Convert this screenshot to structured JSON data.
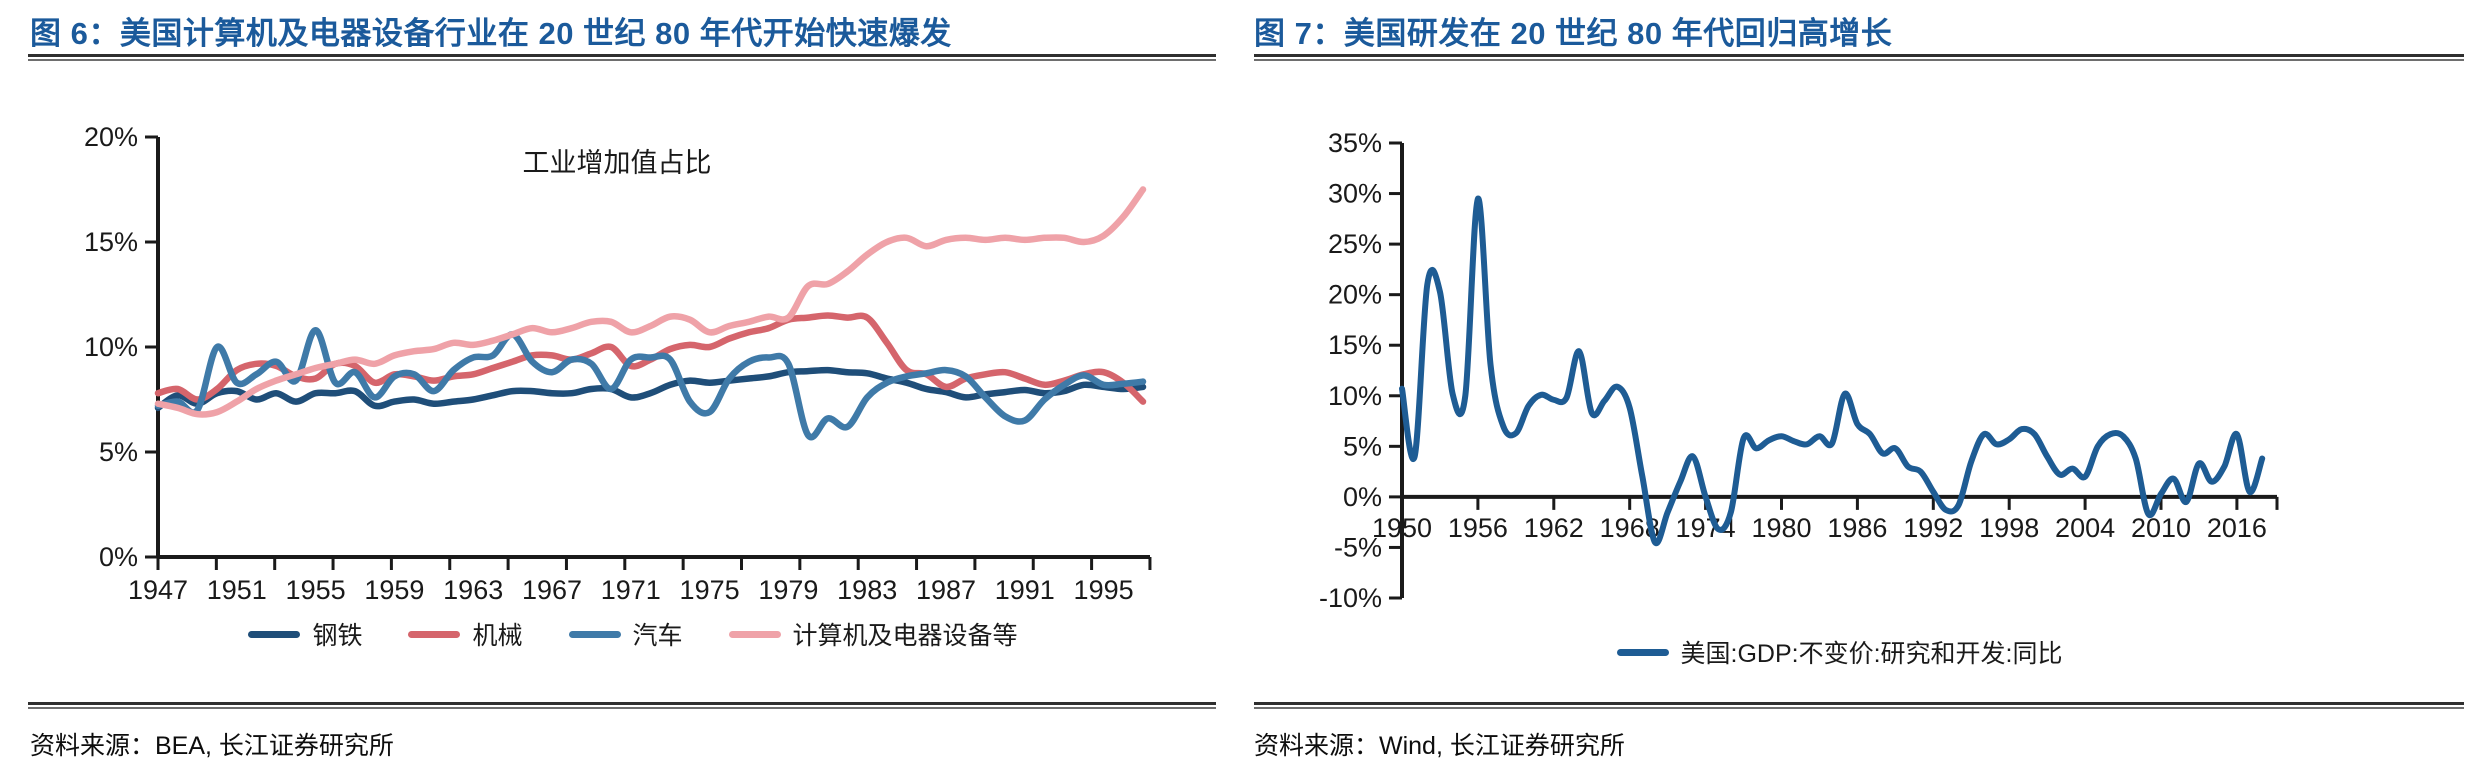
{
  "page": {
    "background": "#ffffff"
  },
  "colors": {
    "title_blue": "#1b5a9b",
    "axis": "#1a1a1a",
    "rule_dark": "#2f2f2f"
  },
  "panels": [
    {
      "title": "图 6：美国计算机及电器设备行业在 20 世纪 80 年代开始快速爆发",
      "source": "资料来源：BEA, 长江证券研究所"
    },
    {
      "title": "图 7：美国研发在 20 世纪 80 年代回归高增长",
      "source": "资料来源：Wind, 长江证券研究所"
    }
  ],
  "chart_data": [
    {
      "type": "line",
      "title": "工业增加值占比",
      "xlabel": "",
      "ylabel": "",
      "x_start": 1947,
      "x_step": 1,
      "xlim": [
        1947,
        1997.5
      ],
      "ylim": [
        0,
        20
      ],
      "yticks": [
        0,
        5,
        10,
        15,
        20
      ],
      "y_tick_suffix": "%",
      "xticks": [
        1947,
        1951,
        1955,
        1959,
        1963,
        1967,
        1971,
        1975,
        1979,
        1983,
        1987,
        1991,
        1995
      ],
      "x_axis_at": 0,
      "grid": false,
      "legend_position": "bottom",
      "series": [
        {
          "name": "钢铁",
          "color": "#1f4e79",
          "values": [
            7.1,
            7.7,
            7.3,
            7.8,
            7.9,
            7.5,
            7.8,
            7.4,
            7.8,
            7.8,
            7.9,
            7.2,
            7.4,
            7.5,
            7.3,
            7.4,
            7.5,
            7.7,
            7.9,
            7.9,
            7.8,
            7.8,
            8.0,
            8.0,
            7.6,
            7.8,
            8.2,
            8.4,
            8.3,
            8.4,
            8.5,
            8.6,
            8.8,
            8.85,
            8.9,
            8.8,
            8.75,
            8.5,
            8.3,
            8.0,
            7.85,
            7.6,
            7.75,
            7.85,
            7.95,
            7.8,
            7.9,
            8.2,
            8.1,
            8.0,
            8.1
          ]
        },
        {
          "name": "机械",
          "color": "#d5656c",
          "values": [
            7.8,
            8.0,
            7.5,
            8.0,
            8.9,
            9.2,
            9.1,
            8.6,
            8.5,
            9.2,
            9.1,
            8.3,
            8.7,
            8.6,
            8.4,
            8.6,
            8.7,
            9.0,
            9.3,
            9.6,
            9.6,
            9.4,
            9.7,
            10.0,
            9.1,
            9.4,
            9.9,
            10.1,
            10.0,
            10.4,
            10.7,
            10.9,
            11.3,
            11.4,
            11.5,
            11.4,
            11.4,
            10.2,
            8.9,
            8.7,
            8.1,
            8.5,
            8.7,
            8.8,
            8.5,
            8.2,
            8.4,
            8.7,
            8.8,
            8.3,
            7.4
          ]
        },
        {
          "name": "汽车",
          "color": "#3f7aa8",
          "values": [
            7.2,
            7.4,
            7.0,
            10.0,
            8.3,
            8.7,
            9.3,
            8.4,
            10.8,
            8.3,
            8.8,
            7.6,
            8.6,
            8.7,
            7.9,
            8.9,
            9.5,
            9.6,
            10.6,
            9.3,
            8.8,
            9.4,
            9.2,
            8.0,
            9.4,
            9.5,
            9.4,
            7.4,
            6.9,
            8.5,
            9.3,
            9.5,
            9.2,
            5.8,
            6.6,
            6.2,
            7.6,
            8.3,
            8.6,
            8.75,
            8.9,
            8.6,
            7.6,
            6.7,
            6.5,
            7.5,
            8.2,
            8.65,
            8.2,
            8.25,
            8.35
          ]
        },
        {
          "name": "计算机及电器设备等",
          "color": "#efa2a8",
          "values": [
            7.3,
            7.1,
            6.8,
            6.9,
            7.4,
            8.0,
            8.4,
            8.7,
            9.0,
            9.2,
            9.4,
            9.2,
            9.6,
            9.8,
            9.9,
            10.2,
            10.1,
            10.3,
            10.6,
            10.9,
            10.7,
            10.9,
            11.2,
            11.2,
            10.7,
            11.0,
            11.45,
            11.3,
            10.7,
            11.0,
            11.2,
            11.45,
            11.4,
            12.9,
            13.0,
            13.6,
            14.4,
            15.0,
            15.2,
            14.8,
            15.1,
            15.2,
            15.1,
            15.2,
            15.1,
            15.2,
            15.2,
            15.0,
            15.3,
            16.2,
            17.5
          ]
        }
      ]
    },
    {
      "type": "line",
      "title": "",
      "xlabel": "",
      "ylabel": "",
      "x_start": 1950,
      "x_step": 1,
      "xlim": [
        1950,
        2019.2
      ],
      "ylim": [
        -10,
        35
      ],
      "yticks": [
        -10,
        -5,
        0,
        5,
        10,
        15,
        20,
        25,
        30,
        35
      ],
      "y_tick_suffix": "%",
      "xticks": [
        1950,
        1956,
        1962,
        1968,
        1974,
        1980,
        1986,
        1992,
        1998,
        2004,
        2010,
        2016
      ],
      "x_axis_at": 0,
      "grid": false,
      "legend_position": "bottom",
      "series": [
        {
          "name": "美国:GDP:不变价:研究和开发:同比",
          "color": "#1e5c94",
          "values": [
            10.7,
            4.0,
            21.0,
            20.3,
            10.2,
            10.0,
            29.5,
            13.0,
            7.0,
            6.3,
            9.0,
            10.1,
            9.6,
            9.8,
            14.4,
            8.3,
            9.5,
            10.9,
            8.8,
            2.0,
            -4.5,
            -1.5,
            1.5,
            4.0,
            0.0,
            -3.2,
            -1.5,
            5.8,
            4.8,
            5.6,
            6.0,
            5.5,
            5.2,
            6.0,
            5.3,
            10.2,
            7.2,
            6.2,
            4.3,
            4.8,
            3.0,
            2.5,
            0.5,
            -1.3,
            -0.8,
            3.5,
            6.2,
            5.2,
            5.7,
            6.7,
            6.2,
            4.0,
            2.2,
            2.8,
            2.0,
            5.0,
            6.2,
            6.0,
            3.8,
            -1.7,
            0.3,
            1.8,
            -0.5,
            3.3,
            1.5,
            3.0,
            6.2,
            0.5,
            3.8
          ]
        }
      ]
    }
  ]
}
